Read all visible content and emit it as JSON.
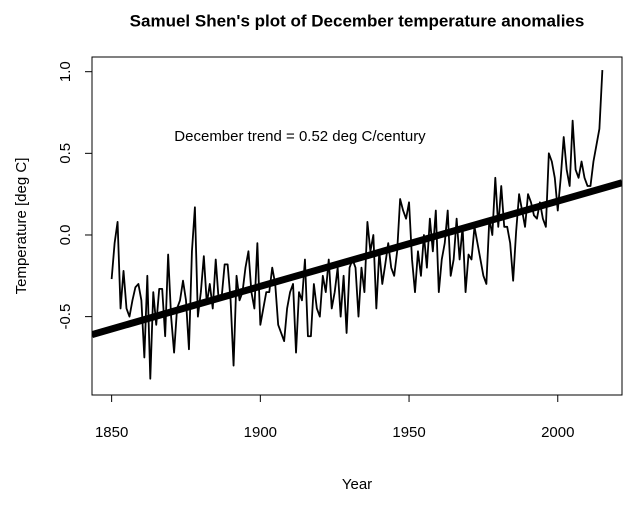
{
  "chart_data": {
    "type": "line",
    "title": "Samuel Shen's plot of December temperature anomalies",
    "xlabel": "Year",
    "ylabel": "Temperature [deg C]",
    "annotation": "December trend = 0.52 deg C/century",
    "x": [
      1850,
      1851,
      1852,
      1853,
      1854,
      1855,
      1856,
      1857,
      1858,
      1859,
      1860,
      1861,
      1862,
      1863,
      1864,
      1865,
      1866,
      1867,
      1868,
      1869,
      1870,
      1871,
      1872,
      1873,
      1874,
      1875,
      1876,
      1877,
      1878,
      1879,
      1880,
      1881,
      1882,
      1883,
      1884,
      1885,
      1886,
      1887,
      1888,
      1889,
      1890,
      1891,
      1892,
      1893,
      1894,
      1895,
      1896,
      1897,
      1898,
      1899,
      1900,
      1901,
      1902,
      1903,
      1904,
      1905,
      1906,
      1907,
      1908,
      1909,
      1910,
      1911,
      1912,
      1913,
      1914,
      1915,
      1916,
      1917,
      1918,
      1919,
      1920,
      1921,
      1922,
      1923,
      1924,
      1925,
      1926,
      1927,
      1928,
      1929,
      1930,
      1931,
      1932,
      1933,
      1934,
      1935,
      1936,
      1937,
      1938,
      1939,
      1940,
      1941,
      1942,
      1943,
      1944,
      1945,
      1946,
      1947,
      1948,
      1949,
      1950,
      1951,
      1952,
      1953,
      1954,
      1955,
      1956,
      1957,
      1958,
      1959,
      1960,
      1961,
      1962,
      1963,
      1964,
      1965,
      1966,
      1967,
      1968,
      1969,
      1970,
      1971,
      1972,
      1973,
      1974,
      1975,
      1976,
      1977,
      1978,
      1979,
      1980,
      1981,
      1982,
      1983,
      1984,
      1985,
      1986,
      1987,
      1988,
      1989,
      1990,
      1991,
      1992,
      1993,
      1994,
      1995,
      1996,
      1997,
      1998,
      1999,
      2000,
      2001,
      2002,
      2003,
      2004,
      2005,
      2006,
      2007,
      2008,
      2009,
      2010,
      2011,
      2012,
      2013,
      2014,
      2015
    ],
    "series": [
      {
        "color": "#000000",
        "values": [
          -0.27,
          -0.05,
          0.08,
          -0.45,
          -0.22,
          -0.45,
          -0.5,
          -0.4,
          -0.32,
          -0.3,
          -0.4,
          -0.75,
          -0.25,
          -0.88,
          -0.35,
          -0.55,
          -0.33,
          -0.33,
          -0.62,
          -0.12,
          -0.5,
          -0.72,
          -0.45,
          -0.4,
          -0.28,
          -0.4,
          -0.7,
          -0.1,
          0.17,
          -0.5,
          -0.35,
          -0.13,
          -0.42,
          -0.3,
          -0.45,
          -0.15,
          -0.4,
          -0.38,
          -0.18,
          -0.18,
          -0.4,
          -0.8,
          -0.25,
          -0.4,
          -0.35,
          -0.2,
          -0.1,
          -0.35,
          -0.45,
          -0.05,
          -0.55,
          -0.45,
          -0.35,
          -0.35,
          -0.2,
          -0.3,
          -0.55,
          -0.6,
          -0.65,
          -0.45,
          -0.35,
          -0.3,
          -0.72,
          -0.35,
          -0.4,
          -0.15,
          -0.62,
          -0.62,
          -0.3,
          -0.45,
          -0.5,
          -0.25,
          -0.35,
          -0.15,
          -0.45,
          -0.35,
          -0.2,
          -0.5,
          -0.25,
          -0.6,
          -0.2,
          -0.15,
          -0.2,
          -0.5,
          -0.2,
          -0.35,
          0.08,
          -0.1,
          0.0,
          -0.45,
          -0.1,
          -0.3,
          -0.18,
          -0.05,
          -0.2,
          -0.25,
          -0.1,
          0.22,
          0.15,
          0.1,
          0.2,
          -0.15,
          -0.35,
          -0.1,
          -0.25,
          0.0,
          -0.2,
          0.1,
          -0.1,
          0.15,
          -0.35,
          -0.15,
          -0.05,
          0.15,
          -0.25,
          -0.15,
          0.1,
          -0.15,
          0.05,
          -0.35,
          -0.12,
          -0.15,
          0.05,
          -0.05,
          -0.15,
          -0.25,
          -0.3,
          0.1,
          0.0,
          0.35,
          0.05,
          0.3,
          0.05,
          0.05,
          -0.05,
          -0.28,
          0.02,
          0.25,
          0.15,
          0.05,
          0.25,
          0.2,
          0.12,
          0.1,
          0.2,
          0.1,
          0.05,
          0.5,
          0.45,
          0.35,
          0.15,
          0.35,
          0.6,
          0.4,
          0.3,
          0.7,
          0.4,
          0.35,
          0.45,
          0.35,
          0.3,
          0.3,
          0.45,
          0.55,
          0.65,
          1.01
        ]
      }
    ],
    "trend": {
      "color": "#000000",
      "x": [
        1843.4,
        2021.6
      ],
      "values": [
        -0.61,
        0.32
      ]
    },
    "xlim": [
      1843.4,
      2021.6
    ],
    "ylim": [
      -0.98,
      1.09
    ],
    "xticks": [
      1850,
      1900,
      1950,
      2000
    ],
    "yticks": [
      -0.5,
      {
        "value": 0,
        "label": "0.0"
      },
      0.5,
      {
        "value": 1,
        "label": "1.0"
      }
    ]
  }
}
